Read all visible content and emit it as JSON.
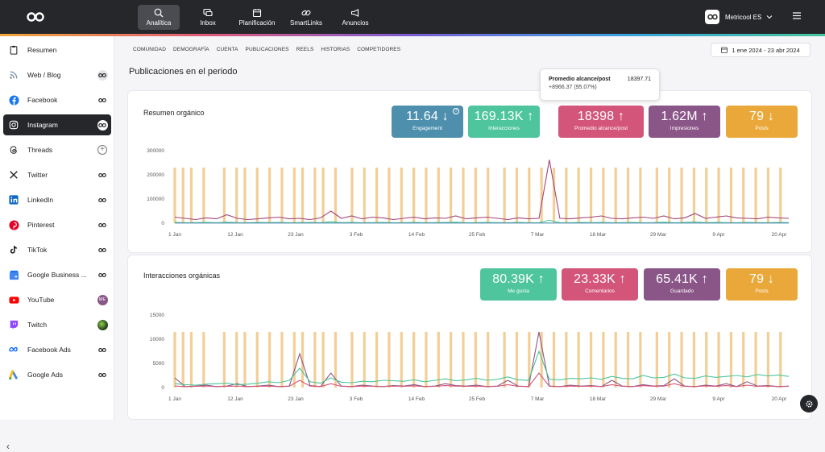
{
  "topnav": {
    "items": [
      {
        "label": "Analítica",
        "icon": "search-chart-icon"
      },
      {
        "label": "Inbox",
        "icon": "chat-icon"
      },
      {
        "label": "Planificación",
        "icon": "calendar-icon"
      },
      {
        "label": "SmartLinks",
        "icon": "link-icon"
      },
      {
        "label": "Anuncios",
        "icon": "megaphone-icon"
      }
    ],
    "account": "Metricool ES"
  },
  "sidebar": {
    "items": [
      {
        "label": "Resumen",
        "icon": "clipboard-icon",
        "status": ""
      },
      {
        "label": "Web / Blog",
        "icon": "rss-icon",
        "status": "connected"
      },
      {
        "label": "Facebook",
        "icon": "facebook-icon",
        "status": "connected"
      },
      {
        "label": "Instagram",
        "icon": "instagram-icon",
        "status": "connected"
      },
      {
        "label": "Threads",
        "icon": "threads-icon",
        "status": "add"
      },
      {
        "label": "Twitter",
        "icon": "x-icon",
        "status": "connected"
      },
      {
        "label": "LinkedIn",
        "icon": "linkedin-icon",
        "status": "connected"
      },
      {
        "label": "Pinterest",
        "icon": "pinterest-icon",
        "status": "connected"
      },
      {
        "label": "TikTok",
        "icon": "tiktok-icon",
        "status": "connected"
      },
      {
        "label": "Google Business ...",
        "icon": "google-business-icon",
        "status": "connected"
      },
      {
        "label": "YouTube",
        "icon": "youtube-icon",
        "status": "avatar",
        "avatar_text": "ME"
      },
      {
        "label": "Twitch",
        "icon": "twitch-icon",
        "status": "avatar-img"
      },
      {
        "label": "Facebook Ads",
        "icon": "meta-icon",
        "status": "connected"
      },
      {
        "label": "Google Ads",
        "icon": "google-ads-icon",
        "status": "connected"
      }
    ],
    "active_index": 3
  },
  "tabs": [
    "COMUNIDAD",
    "DEMOGRAFÍA",
    "CUENTA",
    "PUBLICACIONES",
    "REELS",
    "HISTORIAS",
    "COMPETIDORES"
  ],
  "date_range": "1 ene 2024 - 23 abr 2024",
  "page_title": "Publicaciones en el periodo",
  "tooltip": {
    "title": "Promedio alcance/post",
    "value": "18397.71",
    "delta": "+8966.37 (95.07%)"
  },
  "cards": [
    {
      "title": "Resumen orgánico",
      "kpis": [
        {
          "value": "11.64",
          "arrow": "↓",
          "label": "Engagement",
          "color": "#4e8fae",
          "info": "?"
        },
        {
          "value": "169.13K",
          "arrow": "↑",
          "label": "Interacciones",
          "color": "#4ec59c",
          "info": ""
        },
        {
          "value": "18398",
          "arrow": "↑",
          "label": "Promedio alcance/post",
          "color": "#d3557a",
          "info": ""
        },
        {
          "value": "1.62M",
          "arrow": "↑",
          "label": "Impresiones",
          "color": "#8a5688",
          "info": ""
        },
        {
          "value": "79",
          "arrow": "↓",
          "label": "Posts",
          "color": "#eaa83a",
          "info": ""
        }
      ]
    },
    {
      "title": "Interacciones orgánicas",
      "kpis": [
        {
          "value": "80.39K",
          "arrow": "↑",
          "label": "Me gusta",
          "color": "#4ec59c",
          "info": ""
        },
        {
          "value": "23.33K",
          "arrow": "↑",
          "label": "Comentarios",
          "color": "#d3557a",
          "info": ""
        },
        {
          "value": "65.41K",
          "arrow": "↑",
          "label": "Guardado",
          "color": "#8a5688",
          "info": ""
        },
        {
          "value": "79",
          "arrow": "↓",
          "label": "Posts",
          "color": "#eaa83a",
          "info": ""
        }
      ]
    }
  ],
  "chart_data": [
    {
      "type": "line",
      "x_ticks": [
        "1 Jan",
        "12 Jan",
        "23 Jan",
        "3 Feb",
        "14 Feb",
        "25 Feb",
        "7 Mar",
        "18 Mar",
        "29 Mar",
        "9 Apr",
        "20 Apr"
      ],
      "y_ticks": [
        "0",
        "100000",
        "200000",
        "300000"
      ],
      "ylim": [
        0,
        300000
      ],
      "post_bar_value": 230000,
      "series": [
        {
          "color": "#a0467a",
          "values": [
            25000,
            20000,
            15000,
            22000,
            18000,
            35000,
            20000,
            15000,
            18000,
            22000,
            25000,
            18000,
            20000,
            15000,
            22000,
            50000,
            20000,
            30000,
            18000,
            25000,
            22000,
            15000,
            20000,
            25000,
            18000,
            22000,
            20000,
            30000,
            18000,
            22000,
            25000,
            20000,
            15000,
            22000,
            18000,
            20000,
            262000,
            20000,
            18000,
            22000,
            25000,
            30000,
            20000,
            18000,
            22000,
            25000,
            20000,
            30000,
            18000,
            22000,
            40000,
            20000,
            25000,
            30000,
            22000,
            20000,
            18000,
            25000,
            22000,
            20000
          ]
        },
        {
          "color": "#4ec59c",
          "values": [
            3000,
            2000,
            2500,
            3000,
            2000,
            4000,
            2500,
            2000,
            3000,
            2500,
            3000,
            2000,
            2500,
            3000,
            2000,
            6000,
            2500,
            3000,
            2000,
            2500,
            3000,
            2000,
            2500,
            3000,
            2000,
            2500,
            3000,
            4000,
            2000,
            2500,
            3000,
            2500,
            2000,
            3000,
            2000,
            2500,
            12000,
            2500,
            2000,
            3000,
            2500,
            3000,
            2000,
            2500,
            3000,
            2000,
            2500,
            4000,
            2000,
            3000,
            5000,
            2500,
            3000,
            2500,
            2000,
            3000,
            2500,
            2000,
            3000,
            2500
          ]
        },
        {
          "color": "#4e8fae",
          "values": [
            500,
            500,
            500,
            500,
            500,
            500,
            500,
            500,
            500,
            500,
            500,
            500,
            500,
            500,
            500,
            500,
            500,
            500,
            500,
            500,
            500,
            500,
            500,
            500,
            500,
            500,
            500,
            500,
            500,
            500,
            500,
            500,
            500,
            500,
            500,
            500,
            500,
            500,
            500,
            500,
            500,
            500,
            500,
            500,
            500,
            500,
            500,
            500,
            500,
            500,
            500,
            500,
            500,
            500,
            500,
            500,
            500,
            500,
            500,
            500
          ]
        }
      ]
    },
    {
      "type": "line",
      "x_ticks": [
        "1 Jan",
        "12 Jan",
        "23 Jan",
        "3 Feb",
        "14 Feb",
        "25 Feb",
        "7 Mar",
        "18 Mar",
        "29 Mar",
        "9 Apr",
        "20 Apr"
      ],
      "y_ticks": [
        "0",
        "5000",
        "10000",
        "15000"
      ],
      "ylim": [
        0,
        15000
      ],
      "post_bar_value": 11500,
      "series": [
        {
          "color": "#8a5688",
          "values": [
            2000,
            200,
            300,
            500,
            200,
            300,
            800,
            200,
            300,
            500,
            200,
            300,
            7000,
            400,
            200,
            3000,
            300,
            200,
            500,
            300,
            200,
            400,
            300,
            600,
            200,
            300,
            800,
            400,
            300,
            500,
            200,
            300,
            1500,
            300,
            200,
            11500,
            300,
            200,
            500,
            300,
            400,
            200,
            1500,
            300,
            200,
            600,
            300,
            400,
            1800,
            300,
            200,
            500,
            300,
            800,
            200,
            1200,
            300,
            400,
            200,
            300
          ]
        },
        {
          "color": "#4ec59c",
          "values": [
            800,
            600,
            500,
            700,
            800,
            900,
            600,
            700,
            900,
            1200,
            1000,
            1500,
            4000,
            1200,
            900,
            2000,
            1100,
            1000,
            1300,
            1200,
            1500,
            1400,
            1300,
            1600,
            1200,
            1500,
            1800,
            1400,
            1600,
            1900,
            1500,
            1700,
            2200,
            1600,
            1500,
            7500,
            1700,
            1600,
            1900,
            1800,
            2000,
            1700,
            2300,
            1900,
            1800,
            2500,
            2000,
            2100,
            2800,
            2000,
            1900,
            2400,
            2100,
            2300,
            2500,
            2200,
            2700,
            2400,
            2600,
            2300
          ]
        },
        {
          "color": "#d3557a",
          "values": [
            300,
            200,
            250,
            300,
            200,
            250,
            300,
            200,
            250,
            300,
            200,
            250,
            1500,
            300,
            200,
            800,
            250,
            200,
            300,
            250,
            200,
            300,
            250,
            350,
            200,
            250,
            400,
            300,
            250,
            300,
            200,
            250,
            600,
            250,
            200,
            3000,
            250,
            200,
            300,
            250,
            300,
            200,
            600,
            250,
            200,
            400,
            250,
            300,
            800,
            250,
            200,
            350,
            250,
            400,
            200,
            500,
            250,
            300,
            200,
            250
          ]
        }
      ]
    }
  ]
}
